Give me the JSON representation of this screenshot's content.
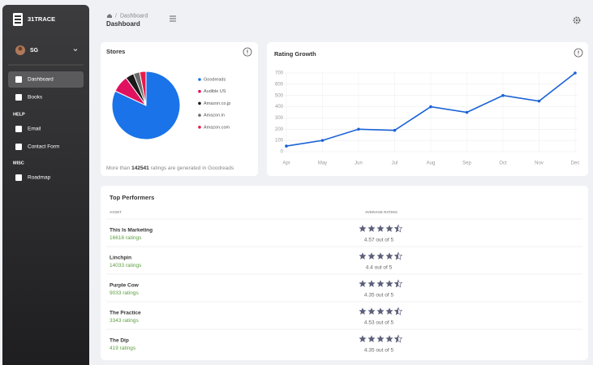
{
  "sidebar": {
    "brand": "31TRACE",
    "user": "SG",
    "items": [
      {
        "label": "Dashboard"
      },
      {
        "label": "Books"
      },
      {
        "section": "HELP"
      },
      {
        "label": "Email"
      },
      {
        "label": "Contact Form"
      },
      {
        "section": "MISC"
      },
      {
        "label": "Roadmap"
      }
    ]
  },
  "header": {
    "breadcrumb": "Dashboard",
    "breadcrumb_separator": "/",
    "title": "Dashboard"
  },
  "chart_data": [
    {
      "type": "pie",
      "title": "Stores",
      "categories": [
        "Goodreads",
        "Audible US",
        "Amazon.co.jp",
        "Amazon.in",
        "Amazon.com"
      ],
      "values": [
        82,
        8,
        4,
        3,
        3
      ],
      "colors": [
        "#1a73e8",
        "#e0115f",
        "#1a1a1a",
        "#6b6b6b",
        "#e8194a"
      ],
      "legend": "right"
    },
    {
      "type": "line",
      "title": "Rating Growth",
      "categories": [
        "Apr",
        "May",
        "Jun",
        "Jul",
        "Aug",
        "Sep",
        "Oct",
        "Nov",
        "Dec"
      ],
      "values": [
        50,
        100,
        200,
        190,
        400,
        350,
        500,
        450,
        700
      ],
      "color": "#1a62d6",
      "ylim": [
        0,
        700
      ],
      "yticks": [
        0,
        100,
        200,
        300,
        400,
        500,
        600,
        700
      ],
      "grid": true
    }
  ],
  "stores_note": {
    "before": "More than",
    "count": 142541,
    "after": "ratings are generated in Goodreads"
  },
  "top_performers": {
    "title": "Top Performers",
    "columns": [
      "ASSET",
      "AVERAGE RATING"
    ],
    "rows": [
      {
        "name": "This Is Marketing",
        "ratings": "16616 ratings",
        "rating": 4.57,
        "rating_label": "4.57 out of 5"
      },
      {
        "name": "Linchpin",
        "ratings": "14033 ratings",
        "rating": 4.4,
        "rating_label": "4.4 out of 5"
      },
      {
        "name": "Purple Cow",
        "ratings": "9033 ratings",
        "rating": 4.35,
        "rating_label": "4.35 out of 5"
      },
      {
        "name": "The Practice",
        "ratings": "3343 ratings",
        "rating": 4.53,
        "rating_label": "4.53 out of 5"
      },
      {
        "name": "The Dip",
        "ratings": "419 ratings",
        "rating": 4.35,
        "rating_label": "4.35 out of 5"
      }
    ]
  }
}
